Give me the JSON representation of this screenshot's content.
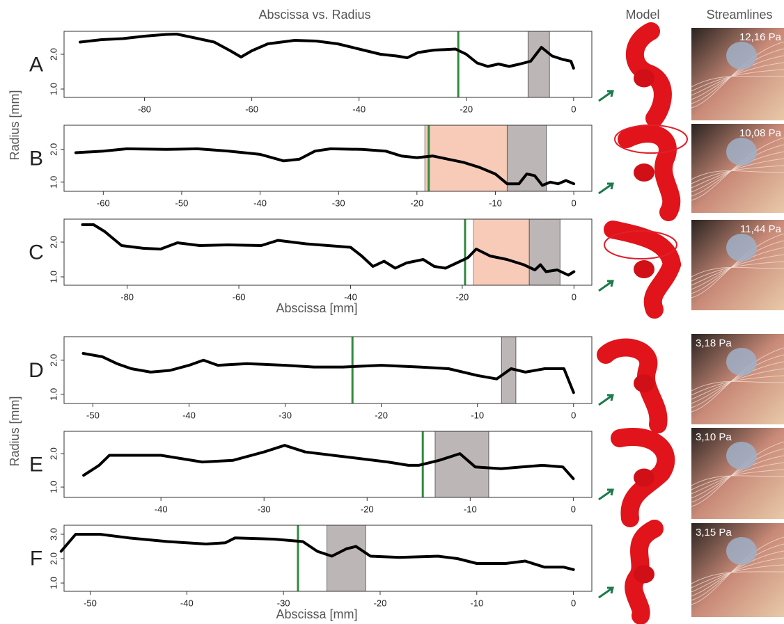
{
  "headings": {
    "title": "Abscissa vs. Radius",
    "model": "Model",
    "streamlines": "Streamlines"
  },
  "streamlines": [
    "12,16 Pa",
    "10,08 Pa",
    "11,44 Pa",
    "3,18 Pa",
    "3,10 Pa",
    "3,15 Pa"
  ],
  "chart_data": [
    {
      "type": "line",
      "label": "A",
      "color": "#000000",
      "marker_color": "#2e8b3e",
      "band_color": "#bdb6b6",
      "x": [
        -92,
        -88,
        -84,
        -80,
        -76,
        -74,
        -70,
        -67,
        -64,
        -62,
        -60,
        -57,
        -52,
        -48,
        -44,
        -40,
        -36,
        -33,
        -31,
        -29,
        -26,
        -22,
        -20,
        -18,
        -16,
        -14,
        -12,
        -10,
        -8,
        -6,
        -4,
        -2,
        -0.5,
        0
      ],
      "values": [
        2.35,
        2.42,
        2.45,
        2.52,
        2.57,
        2.58,
        2.45,
        2.35,
        2.1,
        1.92,
        2.1,
        2.3,
        2.4,
        2.38,
        2.3,
        2.15,
        2.0,
        1.95,
        1.9,
        2.05,
        2.12,
        2.15,
        2.0,
        1.75,
        1.65,
        1.72,
        1.65,
        1.72,
        1.8,
        2.2,
        1.95,
        1.85,
        1.8,
        1.6
      ],
      "marker_x": -21.5,
      "gray_band": [
        -8.5,
        -4.5
      ],
      "xlim": [
        -95,
        3.4
      ],
      "xticks": [
        -80,
        -60,
        -40,
        -20,
        0
      ],
      "ylim": [
        0.76,
        2.66
      ],
      "yticks": [
        {
          "value": 1,
          "label": "1.0"
        },
        {
          "value": 2,
          "label": "2.0"
        }
      ]
    },
    {
      "type": "line",
      "label": "B",
      "color": "#000000",
      "marker_color": "#2e8b3e",
      "band_color": "#bdb6b6",
      "region_color": "#f7cbb8",
      "y_label": "Radius [mm]",
      "x": [
        -63.5,
        -60,
        -57,
        -52,
        -48,
        -44,
        -40,
        -37,
        -35,
        -33,
        -31,
        -27,
        -24,
        -22,
        -20,
        -18,
        -16,
        -14,
        -12,
        -10,
        -8.5,
        -7,
        -6,
        -5,
        -4,
        -3,
        -2,
        -1,
        0
      ],
      "values": [
        1.9,
        1.95,
        2.02,
        2.0,
        2.02,
        1.95,
        1.85,
        1.65,
        1.7,
        1.95,
        2.02,
        2.0,
        1.95,
        1.8,
        1.75,
        1.8,
        1.7,
        1.6,
        1.45,
        1.25,
        0.95,
        0.95,
        1.25,
        1.2,
        0.9,
        1.0,
        0.95,
        1.05,
        0.95
      ],
      "marker_x": -18.5,
      "gray_band": [
        -8.5,
        -3.5
      ],
      "region_band": [
        -19,
        -8.5
      ],
      "xlim": [
        -65,
        2.3
      ],
      "xticks": [
        -60,
        -50,
        -40,
        -30,
        -20,
        -10,
        0
      ],
      "ylim": [
        0.72,
        2.74
      ],
      "yticks": [
        {
          "value": 1,
          "label": "1.0"
        },
        {
          "value": 2,
          "label": "2.0"
        }
      ]
    },
    {
      "type": "line",
      "label": "C",
      "color": "#000000",
      "marker_color": "#2e8b3e",
      "band_color": "#bdb6b6",
      "region_color": "#f7cbb8",
      "x_label": "Abscissa [mm]",
      "x": [
        -88,
        -86,
        -84,
        -81,
        -77,
        -74,
        -71,
        -67,
        -62,
        -56,
        -53,
        -48,
        -44,
        -40,
        -38,
        -36,
        -34,
        -32,
        -30,
        -27,
        -25,
        -23,
        -21,
        -19,
        -17.5,
        -15,
        -12,
        -9,
        -7,
        -6,
        -5,
        -3,
        -1,
        0
      ],
      "values": [
        2.5,
        2.5,
        2.3,
        1.9,
        1.82,
        1.8,
        1.98,
        1.9,
        1.92,
        1.9,
        2.05,
        1.95,
        1.9,
        1.85,
        1.6,
        1.3,
        1.45,
        1.25,
        1.4,
        1.5,
        1.3,
        1.25,
        1.4,
        1.55,
        1.8,
        1.6,
        1.5,
        1.35,
        1.2,
        1.35,
        1.15,
        1.2,
        1.05,
        1.15
      ],
      "marker_x": -19.5,
      "gray_band": [
        -8,
        -2.5
      ],
      "region_band": [
        -18,
        -8
      ],
      "xlim": [
        -91.3,
        3.2
      ],
      "xticks": [
        -80,
        -60,
        -40,
        -20,
        0
      ],
      "ylim": [
        0.76,
        2.66
      ],
      "yticks": [
        {
          "value": 1,
          "label": "1.0"
        },
        {
          "value": 2,
          "label": "2.0"
        }
      ]
    },
    {
      "type": "line",
      "label": "D",
      "color": "#000000",
      "marker_color": "#2e8b3e",
      "band_color": "#bdb6b6",
      "x": [
        -51,
        -49,
        -47.5,
        -46,
        -44,
        -42,
        -40,
        -38.5,
        -37,
        -34,
        -30,
        -27,
        -24,
        -20,
        -16,
        -13,
        -10,
        -8,
        -6.5,
        -5,
        -3,
        -1,
        0
      ],
      "values": [
        2.2,
        2.1,
        1.9,
        1.75,
        1.65,
        1.7,
        1.85,
        2.0,
        1.85,
        1.9,
        1.85,
        1.8,
        1.8,
        1.85,
        1.8,
        1.75,
        1.55,
        1.45,
        1.75,
        1.65,
        1.75,
        1.75,
        1.05
      ],
      "marker_x": -23,
      "gray_band": [
        -7.5,
        -6
      ],
      "xlim": [
        -53,
        1.9
      ],
      "xticks": [
        -50,
        -40,
        -30,
        -20,
        -10,
        0
      ],
      "ylim": [
        0.73,
        2.69
      ],
      "yticks": [
        {
          "value": 1,
          "label": "1.0"
        },
        {
          "value": 2,
          "label": "2.0"
        }
      ]
    },
    {
      "type": "line",
      "label": "E",
      "color": "#000000",
      "marker_color": "#2e8b3e",
      "band_color": "#bdb6b6",
      "y_label": "Radius [mm]",
      "x": [
        -47.5,
        -46,
        -45,
        -43,
        -40,
        -36,
        -33,
        -30,
        -28,
        -26,
        -22,
        -18,
        -16,
        -15,
        -13,
        -11,
        -9.5,
        -7,
        -5,
        -3,
        -1,
        0
      ],
      "values": [
        1.35,
        1.65,
        1.95,
        1.95,
        1.95,
        1.75,
        1.8,
        2.05,
        2.25,
        2.05,
        1.9,
        1.75,
        1.65,
        1.65,
        1.8,
        2.0,
        1.6,
        1.55,
        1.6,
        1.65,
        1.6,
        1.25
      ],
      "marker_x": -14.6,
      "gray_band": [
        -13.4,
        -8.2
      ],
      "xlim": [
        -49.4,
        1.8
      ],
      "xticks": [
        -40,
        -30,
        -20,
        -10,
        0
      ],
      "ylim": [
        0.69,
        2.67
      ],
      "yticks": [
        {
          "value": 1,
          "label": "1.0"
        },
        {
          "value": 2,
          "label": "2.0"
        }
      ]
    },
    {
      "type": "line",
      "label": "F",
      "color": "#000000",
      "marker_color": "#2e8b3e",
      "band_color": "#bdb6b6",
      "x_label": "Abscissa [mm]",
      "x": [
        -53,
        -51.5,
        -49,
        -46,
        -42,
        -38,
        -36,
        -35,
        -31,
        -28,
        -26.5,
        -25,
        -23.5,
        -22.5,
        -21,
        -18,
        -14,
        -12,
        -10,
        -7,
        -5,
        -3,
        -1,
        0
      ],
      "values": [
        2.3,
        3.0,
        3.0,
        2.85,
        2.7,
        2.6,
        2.65,
        2.85,
        2.8,
        2.7,
        2.3,
        2.1,
        2.4,
        2.5,
        2.1,
        2.05,
        2.1,
        2.0,
        1.8,
        1.8,
        1.9,
        1.65,
        1.65,
        1.55
      ],
      "marker_x": -28.5,
      "gray_band": [
        -25.5,
        -21.5
      ],
      "xlim": [
        -52.7,
        1.9
      ],
      "xticks": [
        -50,
        -40,
        -30,
        -20,
        -10,
        0
      ],
      "ylim": [
        0.66,
        3.37
      ],
      "yticks": [
        {
          "value": 1,
          "label": "1.0"
        },
        {
          "value": 2,
          "label": "2.0"
        },
        {
          "value": 3,
          "label": "3.0"
        }
      ]
    }
  ]
}
